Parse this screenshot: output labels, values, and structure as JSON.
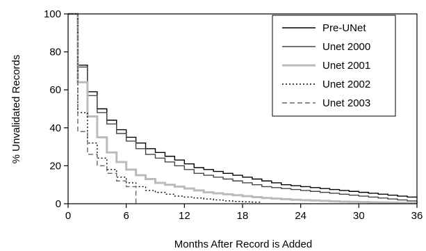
{
  "chart_data": {
    "type": "line",
    "title": "",
    "xlabel": "Months After Record is Added",
    "ylabel": "% Unvalidated Records",
    "xlim": [
      0,
      36
    ],
    "ylim": [
      0,
      100
    ],
    "xticks": [
      0,
      6,
      12,
      18,
      24,
      30,
      36
    ],
    "yticks": [
      0,
      20,
      40,
      60,
      80,
      100
    ],
    "xtick_labels": [
      "0",
      "6",
      "12",
      "18",
      "24",
      "30",
      "36"
    ],
    "ytick_labels": [
      "0",
      "20",
      "40",
      "60",
      "80",
      "100"
    ],
    "grid": false,
    "step": true,
    "legend": "top-right",
    "series": [
      {
        "name": "Pre-UNet",
        "color": "#000000",
        "dash": "solid",
        "x": [
          0,
          1,
          2,
          3,
          4,
          5,
          6,
          7,
          8,
          9,
          10,
          11,
          12,
          13,
          14,
          15,
          16,
          17,
          18,
          19,
          20,
          21,
          22,
          23,
          24,
          25,
          26,
          27,
          28,
          29,
          30,
          31,
          32,
          33,
          34,
          35,
          36
        ],
        "y": [
          100,
          73,
          59,
          50,
          44,
          39,
          35,
          32,
          29,
          27,
          25,
          23,
          21,
          19,
          18,
          17,
          16,
          15,
          14,
          13,
          12,
          11,
          10,
          9.5,
          9,
          8.5,
          8,
          7.5,
          7,
          6.5,
          6,
          5.5,
          5,
          4.5,
          4,
          3.5,
          3
        ]
      },
      {
        "name": "Unet 2000",
        "color": "#444444",
        "dash": "solid",
        "x": [
          0,
          1,
          2,
          3,
          4,
          5,
          6,
          7,
          8,
          9,
          10,
          11,
          12,
          13,
          14,
          15,
          16,
          17,
          18,
          19,
          20,
          21,
          22,
          23,
          24,
          25,
          26,
          27,
          28,
          29,
          30,
          31,
          32,
          33,
          34,
          35,
          36
        ],
        "y": [
          100,
          72,
          57,
          48,
          42,
          37,
          33,
          29,
          26,
          24,
          22,
          20,
          18,
          16,
          15,
          14,
          13,
          12,
          11,
          10,
          9,
          8.5,
          8,
          7.5,
          7,
          6.5,
          6,
          5.5,
          5,
          4.5,
          4,
          3.5,
          3,
          2.5,
          2,
          1.5,
          1
        ]
      },
      {
        "name": "Unet 2001",
        "color": "#bbbbbb",
        "dash": "solid",
        "x": [
          0,
          1,
          2,
          3,
          4,
          5,
          6,
          7,
          8,
          9,
          10,
          11,
          12,
          13,
          14,
          15,
          16,
          17,
          18,
          19,
          20,
          21,
          22,
          23,
          24,
          25,
          26,
          27,
          28,
          29,
          30,
          31,
          32,
          33,
          34,
          35,
          36
        ],
        "y": [
          100,
          64,
          46,
          35,
          27,
          22,
          18,
          15,
          13,
          11,
          10,
          9,
          8,
          7,
          6,
          5.5,
          5,
          4.5,
          4,
          3.5,
          3,
          2.7,
          2.4,
          2.1,
          1.9,
          1.7,
          1.5,
          1.3,
          1.1,
          1,
          0.9,
          0.8,
          0.7,
          0.6,
          0.5,
          0.4,
          0.3
        ]
      },
      {
        "name": "Unet 2002",
        "color": "#000000",
        "dash": "dotted",
        "x": [
          0,
          1,
          2,
          3,
          4,
          5,
          6,
          7,
          8,
          9,
          10,
          11,
          12,
          13,
          14,
          15,
          16,
          17,
          18,
          19
        ],
        "y": [
          100,
          48,
          32,
          24,
          18,
          14,
          11,
          9,
          7,
          6,
          5,
          4,
          3.5,
          3,
          2.5,
          2,
          1.5,
          1.2,
          1,
          0.8
        ]
      },
      {
        "name": "Unet 2003",
        "color": "#666666",
        "dash": "dashed",
        "x": [
          0,
          1,
          2,
          3,
          4,
          5,
          6,
          7
        ],
        "y": [
          100,
          38,
          26,
          20,
          16,
          12,
          9,
          0
        ]
      }
    ]
  }
}
